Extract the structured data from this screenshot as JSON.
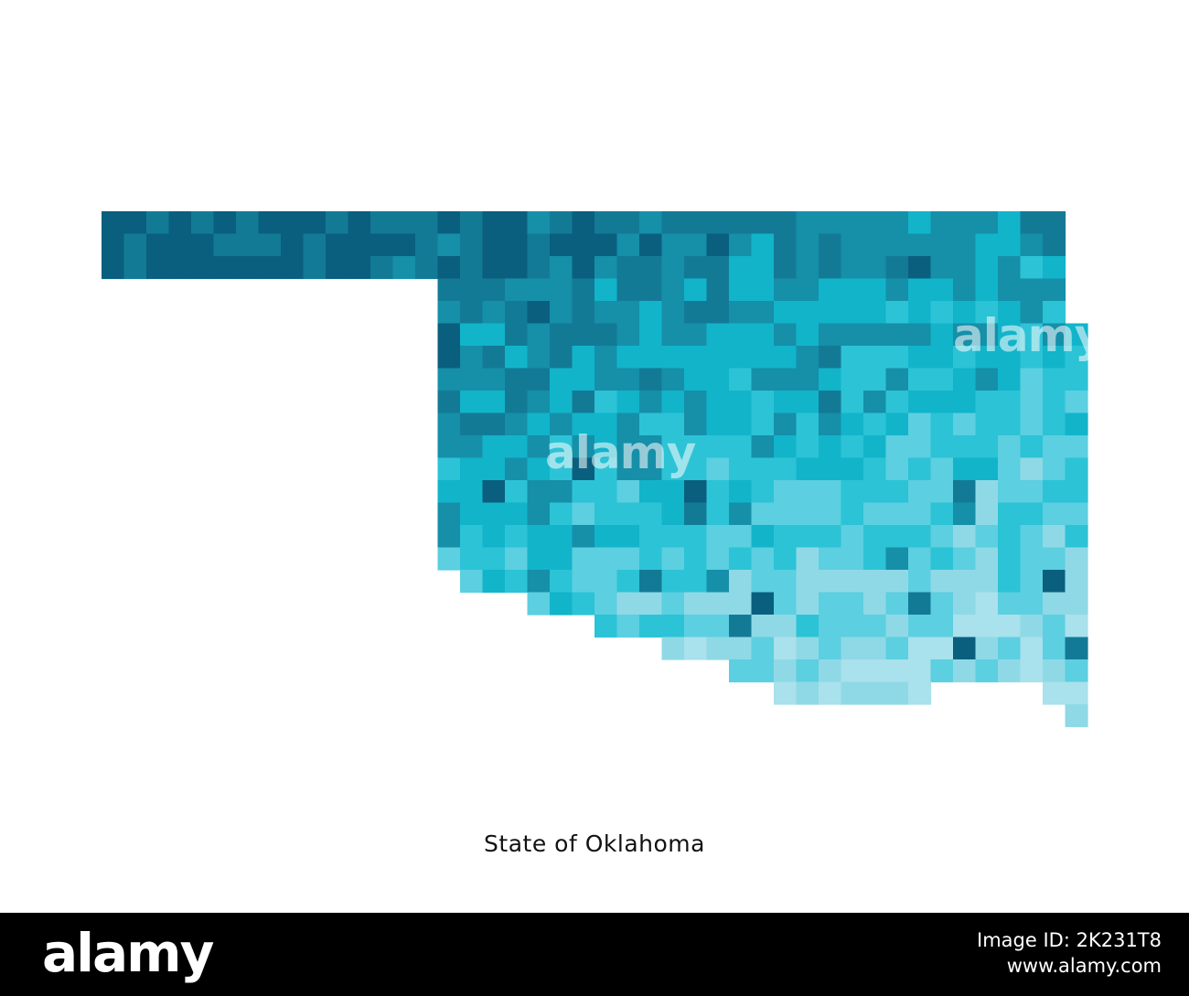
{
  "map": {
    "caption": "State of Oklahoma",
    "palette": [
      "#0a5f7e",
      "#137a96",
      "#168fa9",
      "#12b4ca",
      "#2cc3d6",
      "#5ccfe0",
      "#8fd9e6",
      "#a9e1ec"
    ]
  },
  "watermarks": [
    "alamy",
    "alamy"
  ],
  "footer": {
    "logo": "alamy",
    "image_id": "Image ID: 2K231T8",
    "site": "www.alamy.com"
  }
}
